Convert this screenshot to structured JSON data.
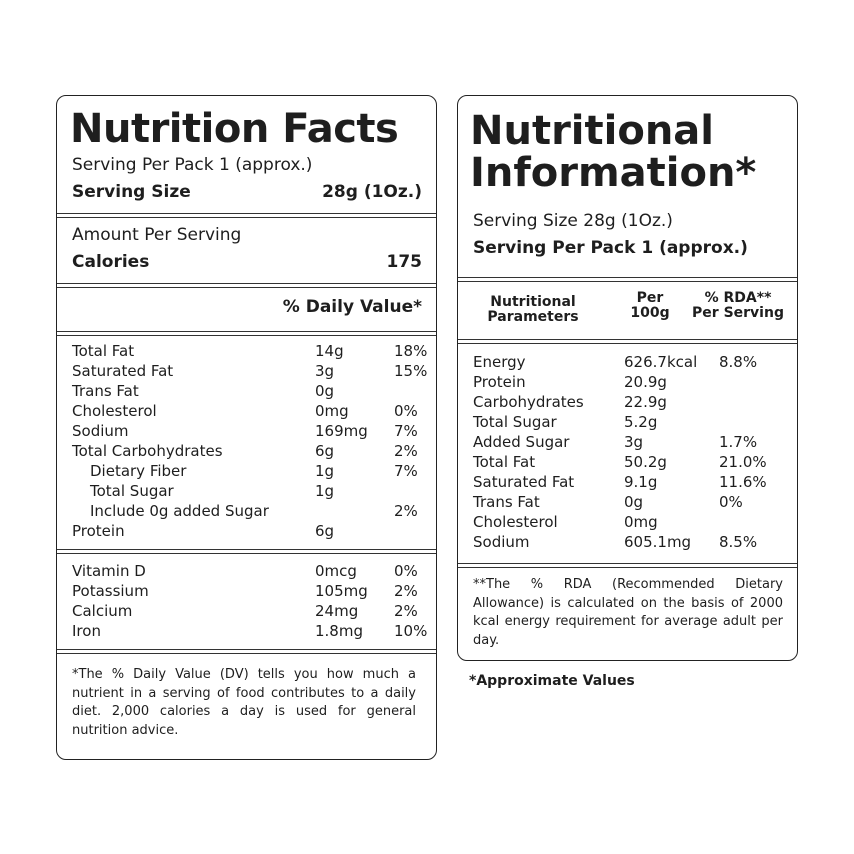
{
  "nutrition_facts": {
    "title": "Nutrition Facts",
    "serving_per_pack": "Serving Per Pack 1 (approx.)",
    "serving_size_label": "Serving Size",
    "serving_size_value": "28g (1Oz.)",
    "amount_per_serving": "Amount Per Serving",
    "calories_label": "Calories",
    "calories_value": "175",
    "daily_value_header": "% Daily Value*",
    "nutrients": [
      {
        "name": "Total Fat",
        "amount": "14g",
        "dv": "18%"
      },
      {
        "name": "Saturated Fat",
        "amount": "3g",
        "dv": "15%"
      },
      {
        "name": "Trans Fat",
        "amount": "0g",
        "dv": ""
      },
      {
        "name": "Cholesterol",
        "amount": "0mg",
        "dv": "0%"
      },
      {
        "name": "Sodium",
        "amount": "169mg",
        "dv": "7%"
      },
      {
        "name": "Total Carbohydrates",
        "amount": "6g",
        "dv": "2%"
      },
      {
        "name": "Dietary Fiber",
        "amount": "1g",
        "dv": "7%"
      },
      {
        "name": "Total Sugar",
        "amount": "1g",
        "dv": ""
      },
      {
        "name": "Include 0g added Sugar",
        "amount": "",
        "dv": "2%"
      },
      {
        "name": "Protein",
        "amount": "6g",
        "dv": ""
      }
    ],
    "vitamins": [
      {
        "name": "Vitamin D",
        "amount": "0mcg",
        "dv": "0%"
      },
      {
        "name": "Potassium",
        "amount": "105mg",
        "dv": "2%"
      },
      {
        "name": "Calcium",
        "amount": "24mg",
        "dv": "2%"
      },
      {
        "name": "Iron",
        "amount": "1.8mg",
        "dv": "10%"
      }
    ],
    "footnote": "*The % Daily Value (DV) tells you how much a nutrient in a serving of food contributes to a daily diet. 2,000 calories a day is used for general nutrition advice."
  },
  "nutritional_information": {
    "title_line1": "Nutritional",
    "title_line2": "Information*",
    "serving_size": "Serving Size 28g (1Oz.)",
    "serving_per_pack": "Serving Per Pack 1 (approx.)",
    "col_parameters_1": "Nutritional",
    "col_parameters_2": "Parameters",
    "col_per100_1": "Per",
    "col_per100_2": "100g",
    "col_rda_1": "% RDA**",
    "col_rda_2": "Per Serving",
    "rows": [
      {
        "name": "Energy",
        "per100": "626.7kcal",
        "rda": "8.8%"
      },
      {
        "name": "Protein",
        "per100": "20.9g",
        "rda": ""
      },
      {
        "name": "Carbohydrates",
        "per100": "22.9g",
        "rda": ""
      },
      {
        "name": "Total Sugar",
        "per100": "5.2g",
        "rda": ""
      },
      {
        "name": "Added Sugar",
        "per100": "3g",
        "rda": "1.7%"
      },
      {
        "name": "Total Fat",
        "per100": "50.2g",
        "rda": "21.0%"
      },
      {
        "name": "Saturated Fat",
        "per100": "9.1g",
        "rda": "11.6%"
      },
      {
        "name": "Trans Fat",
        "per100": "0g",
        "rda": "0%"
      },
      {
        "name": "Cholesterol",
        "per100": "0mg",
        "rda": ""
      },
      {
        "name": "Sodium",
        "per100": "605.1mg",
        "rda": "8.5%"
      }
    ],
    "footnote": "**The % RDA (Recommended Dietary Allowance) is calculated on the basis of 2000 kcal energy requirement for average adult per day."
  },
  "approximate_values": "*Approximate Values"
}
